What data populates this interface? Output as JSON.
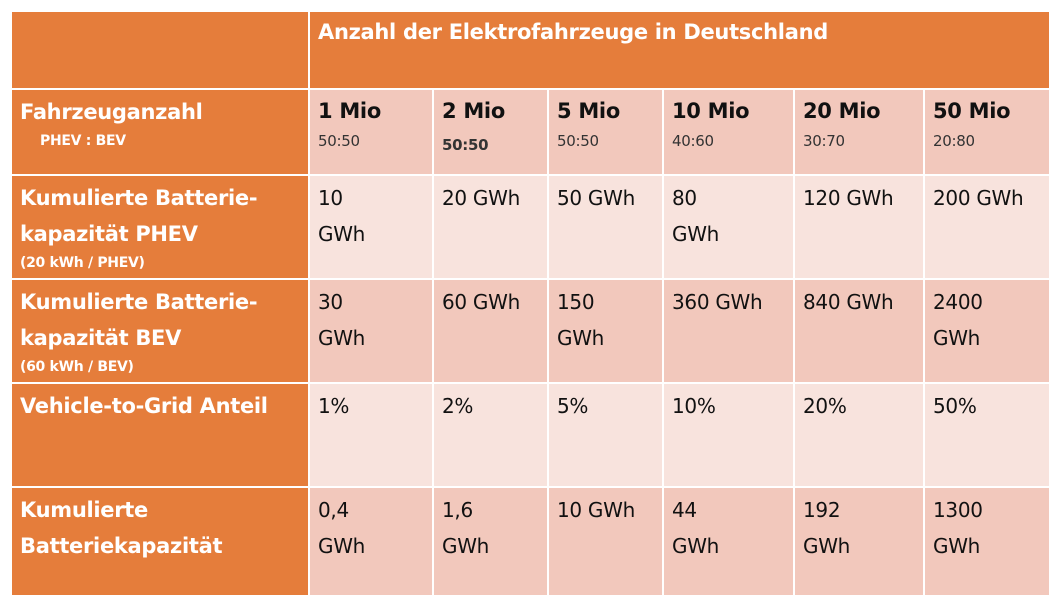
{
  "title": "Anzahl der Elektrofahrzeuge in Deutschland",
  "rows": [
    {
      "label": "Fahrzeuganzahl",
      "sub": "PHEV : BEV"
    },
    {
      "label": "Kumulierte Batterie-\nkapazität PHEV",
      "sub": "(20 kWh / PHEV)"
    },
    {
      "label": "Kumulierte Batterie-\nkapazität BEV",
      "sub": "(60 kWh / BEV)"
    },
    {
      "label": "Vehicle-to-Grid Anteil",
      "sub": ""
    },
    {
      "label": "Kumulierte\nBatteriekapazität",
      "sub": ""
    }
  ],
  "columns": [
    {
      "count": "1 Mio",
      "ratio": "50:50",
      "phev": "10\nGWh",
      "bev": "30\nGWh",
      "v2g": "1%",
      "total": "0,4\nGWh"
    },
    {
      "count": "2 Mio",
      "ratio": "50:50",
      "phev": "20 GWh",
      "bev": "60 GWh",
      "v2g": "2%",
      "total": "1,6\nGWh"
    },
    {
      "count": "5 Mio",
      "ratio": "50:50",
      "phev": "50 GWh",
      "bev": "150\nGWh",
      "v2g": "5%",
      "total": "10 GWh"
    },
    {
      "count": "10 Mio",
      "ratio": "40:60",
      "phev": "80\nGWh",
      "bev": "360 GWh",
      "v2g": "10%",
      "total": "44\nGWh"
    },
    {
      "count": "20 Mio",
      "ratio": "30:70",
      "phev": "120 GWh",
      "bev": "840 GWh",
      "v2g": "20%",
      "total": "192\nGWh"
    },
    {
      "count": "50 Mio",
      "ratio": "20:80",
      "phev": "200 GWh",
      "bev": "2400\nGWh",
      "v2g": "50%",
      "total": "1300\nGWh"
    }
  ],
  "colors": {
    "header": "#E57D3B",
    "dark": "#F2C8BC",
    "light": "#F8E3DD"
  }
}
